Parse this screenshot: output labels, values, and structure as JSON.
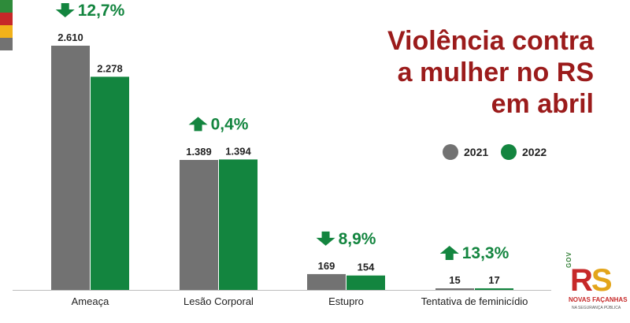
{
  "header": {
    "title_lines": [
      "Violência contra",
      "a mulher no RS",
      "em abril"
    ]
  },
  "colors": {
    "series_2021": "#727272",
    "series_2022": "#13853f",
    "title": "#9b1b1b",
    "change": "#13853f",
    "stripes": [
      "#2e8b3a",
      "#c62828",
      "#f2b21a",
      "#727272"
    ]
  },
  "legend": {
    "items": [
      {
        "label": "2021",
        "color": "#727272"
      },
      {
        "label": "2022",
        "color": "#13853f"
      }
    ]
  },
  "chart_data": {
    "type": "bar",
    "title": "Violência contra a mulher no RS em abril",
    "categories": [
      "Ameaça",
      "Lesão Corporal",
      "Estupro",
      "Tentativa de feminicídio"
    ],
    "series": [
      {
        "name": "2021",
        "values": [
          2610,
          1389,
          169,
          15
        ],
        "labels": [
          "2.610",
          "1.389",
          "169",
          "15"
        ]
      },
      {
        "name": "2022",
        "values": [
          2278,
          1394,
          154,
          17
        ],
        "labels": [
          "2.278",
          "1.394",
          "154",
          "17"
        ]
      }
    ],
    "changes": [
      {
        "text": "12,7%",
        "direction": "down"
      },
      {
        "text": "0,4%",
        "direction": "up"
      },
      {
        "text": "8,9%",
        "direction": "down"
      },
      {
        "text": "13,3%",
        "direction": "up"
      }
    ],
    "ylim": [
      0,
      2900
    ],
    "grid": false,
    "legend_position": "right"
  },
  "logo": {
    "gov": "GOV",
    "rs": [
      "R",
      "S"
    ],
    "tagline": "NOVAS FAÇANHAS",
    "subtagline": "NA SEGURANÇA PÚBLICA"
  }
}
